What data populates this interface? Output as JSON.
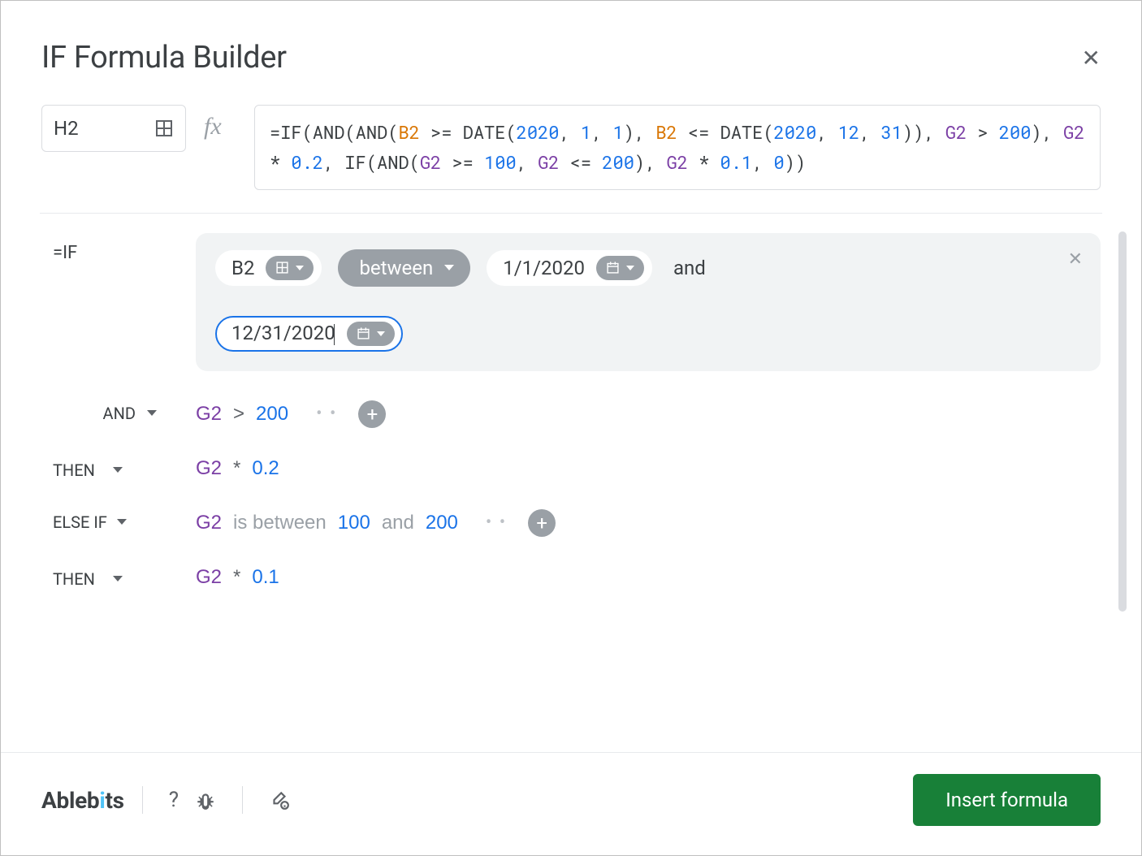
{
  "title": "IF Formula Builder",
  "target_cell": "H2",
  "formula": {
    "tokens": [
      {
        "t": "=IF(AND(AND(",
        "c": "kw"
      },
      {
        "t": "B2",
        "c": "ref"
      },
      {
        "t": " >= DATE(",
        "c": "kw"
      },
      {
        "t": "2020",
        "c": "num"
      },
      {
        "t": ", ",
        "c": "kw"
      },
      {
        "t": "1",
        "c": "num"
      },
      {
        "t": ", ",
        "c": "kw"
      },
      {
        "t": "1",
        "c": "num"
      },
      {
        "t": "), ",
        "c": "kw"
      },
      {
        "t": "B2",
        "c": "ref"
      },
      {
        "t": " <= DATE(",
        "c": "kw"
      },
      {
        "t": "2020",
        "c": "num"
      },
      {
        "t": ", ",
        "c": "kw"
      },
      {
        "t": "12",
        "c": "num"
      },
      {
        "t": ", ",
        "c": "kw"
      },
      {
        "t": "31",
        "c": "num"
      },
      {
        "t": ")), ",
        "c": "kw"
      },
      {
        "t": "G2",
        "c": "cell"
      },
      {
        "t": " > ",
        "c": "kw"
      },
      {
        "t": "200",
        "c": "num"
      },
      {
        "t": "), ",
        "c": "kw"
      },
      {
        "t": "G2",
        "c": "cell"
      },
      {
        "t": " * ",
        "c": "kw"
      },
      {
        "t": "0.2",
        "c": "num"
      },
      {
        "t": ", IF(AND(",
        "c": "kw"
      },
      {
        "t": "G2",
        "c": "cell"
      },
      {
        "t": " >= ",
        "c": "kw"
      },
      {
        "t": "100",
        "c": "num"
      },
      {
        "t": ", ",
        "c": "kw"
      },
      {
        "t": "G2",
        "c": "cell"
      },
      {
        "t": " <= ",
        "c": "kw"
      },
      {
        "t": "200",
        "c": "num"
      },
      {
        "t": "), ",
        "c": "kw"
      },
      {
        "t": "G2",
        "c": "cell"
      },
      {
        "t": " * ",
        "c": "kw"
      },
      {
        "t": "0.1",
        "c": "num"
      },
      {
        "t": ", ",
        "c": "kw"
      },
      {
        "t": "0",
        "c": "num"
      },
      {
        "t": "))",
        "c": "kw"
      }
    ]
  },
  "rows": {
    "if": {
      "label": "=IF",
      "cell_ref": "B2",
      "operator": "between",
      "date1": "1/1/2020",
      "join_word": "and",
      "date2": "12/31/2020"
    },
    "and": {
      "label": "AND",
      "cell": "G2",
      "op": ">",
      "value": "200"
    },
    "then1": {
      "label": "THEN",
      "cell": "G2",
      "op": "*",
      "value": "0.2"
    },
    "elseif": {
      "label": "ELSE IF",
      "cell": "G2",
      "txt1": "is between",
      "v1": "100",
      "txt2": "and",
      "v2": "200"
    },
    "then2": {
      "label": "THEN",
      "cell": "G2",
      "op": "*",
      "value": "0.1"
    }
  },
  "footer": {
    "brand_a": "Ableb",
    "brand_dot": "i",
    "brand_b": "ts",
    "help": "?",
    "insert_label": "Insert formula"
  },
  "colors": {
    "accent": "#1a73e8",
    "green": "#188038",
    "cell_ref": "#7b3fa5",
    "orange_ref": "#d97706",
    "gray_pill": "#9aa0a6",
    "panel_bg": "#f1f3f4",
    "border": "#dadce0"
  }
}
